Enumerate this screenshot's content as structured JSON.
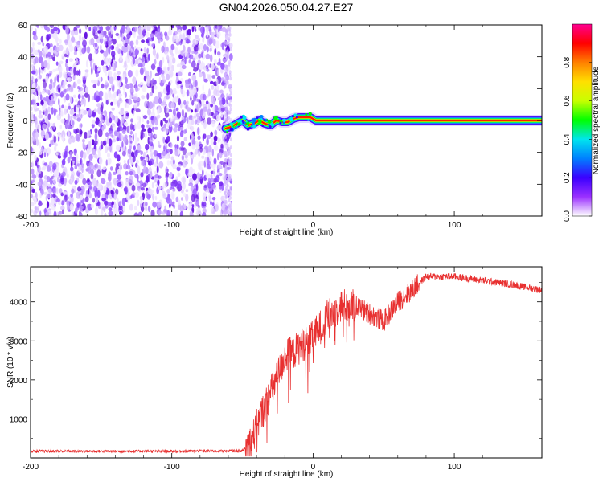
{
  "title": "GN04.2026.050.04.27.E27",
  "chart_data": [
    {
      "type": "heatmap",
      "name": "spectrogram",
      "xlabel": "Height of straight line (km)",
      "ylabel": "Frequency (Hz)",
      "xlim": [
        -200,
        162
      ],
      "ylim": [
        -60,
        60
      ],
      "xticks": [
        -200,
        -100,
        0,
        100
      ],
      "yticks": [
        -60,
        -40,
        -20,
        0,
        20,
        40,
        60
      ],
      "noise_region_x": [
        -200,
        -58
      ],
      "signal_track": [
        {
          "x": -62,
          "f": -5
        },
        {
          "x": -58,
          "f": -4
        },
        {
          "x": -54,
          "f": -2
        },
        {
          "x": -50,
          "f": 0
        },
        {
          "x": -46,
          "f": -3
        },
        {
          "x": -42,
          "f": -2
        },
        {
          "x": -38,
          "f": 0
        },
        {
          "x": -34,
          "f": -2
        },
        {
          "x": -30,
          "f": -3
        },
        {
          "x": -26,
          "f": 0
        },
        {
          "x": -22,
          "f": -1
        },
        {
          "x": -18,
          "f": -1
        },
        {
          "x": -14,
          "f": 1
        },
        {
          "x": -10,
          "f": 2
        },
        {
          "x": -6,
          "f": 2
        },
        {
          "x": -2,
          "f": 2
        },
        {
          "x": 2,
          "f": 0
        },
        {
          "x": 10,
          "f": 0
        },
        {
          "x": 162,
          "f": 0
        }
      ],
      "colorbar": {
        "label": "Normalized spectral amplitude",
        "range": [
          0,
          1
        ],
        "ticks": [
          "0.0",
          "0.2",
          "0.4",
          "0.6",
          "0.8"
        ],
        "stops": [
          "#ffffff",
          "#9b30ff",
          "#3b00ff",
          "#0080ff",
          "#00e5ee",
          "#00ff00",
          "#c8ff00",
          "#ffe000",
          "#ff8000",
          "#ff0000",
          "#ff0090"
        ]
      }
    },
    {
      "type": "line",
      "name": "snr",
      "xlabel": "Height of straight line (km)",
      "ylabel": "SNR (10 * v/v)",
      "xlim": [
        -200,
        162
      ],
      "ylim": [
        0,
        4900
      ],
      "xticks": [
        -200,
        -100,
        0,
        100
      ],
      "yticks": [
        1000,
        2000,
        3000,
        4000
      ],
      "color": "#e83030",
      "envelope": [
        {
          "x": -200,
          "y": 170
        },
        {
          "x": -150,
          "y": 170
        },
        {
          "x": -100,
          "y": 170
        },
        {
          "x": -50,
          "y": 180
        },
        {
          "x": -44,
          "y": 400
        },
        {
          "x": -38,
          "y": 1000
        },
        {
          "x": -32,
          "y": 1500
        },
        {
          "x": -26,
          "y": 2000
        },
        {
          "x": -20,
          "y": 2600
        },
        {
          "x": -14,
          "y": 2700
        },
        {
          "x": -8,
          "y": 2900
        },
        {
          "x": -2,
          "y": 3000
        },
        {
          "x": 4,
          "y": 3300
        },
        {
          "x": 10,
          "y": 3600
        },
        {
          "x": 20,
          "y": 3900
        },
        {
          "x": 30,
          "y": 3900
        },
        {
          "x": 40,
          "y": 3700
        },
        {
          "x": 50,
          "y": 3500
        },
        {
          "x": 60,
          "y": 4000
        },
        {
          "x": 70,
          "y": 4300
        },
        {
          "x": 80,
          "y": 4650
        },
        {
          "x": 100,
          "y": 4650
        },
        {
          "x": 120,
          "y": 4550
        },
        {
          "x": 140,
          "y": 4450
        },
        {
          "x": 162,
          "y": 4300
        }
      ]
    }
  ]
}
